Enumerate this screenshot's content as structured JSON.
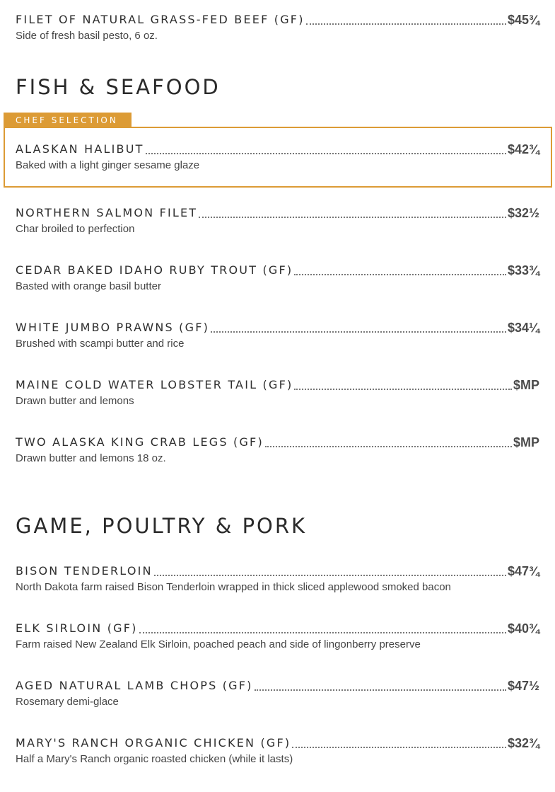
{
  "accent_color": "#dc9b35",
  "top_item": {
    "name": "FILET OF NATURAL GRASS-FED BEEF (GF)",
    "price": "$45¾",
    "desc": "Side of fresh basil pesto, 6 oz."
  },
  "fish": {
    "title": "FISH & SEAFOOD",
    "badge": "CHEF SELECTION",
    "items": [
      {
        "name": "ALASKAN HALIBUT",
        "price": "$42¾",
        "desc": "Baked with a light ginger sesame glaze"
      },
      {
        "name": "NORTHERN SALMON FILET",
        "price": "$32½",
        "desc": "Char broiled to perfection"
      },
      {
        "name": "CEDAR BAKED IDAHO RUBY TROUT (GF)",
        "price": "$33¾",
        "desc": "Basted with orange basil butter"
      },
      {
        "name": "WHITE JUMBO PRAWNS (GF)",
        "price": "$34¼",
        "desc": "Brushed with scampi butter and rice"
      },
      {
        "name": "MAINE COLD WATER LOBSTER TAIL (GF)",
        "price": "$MP",
        "desc": "Drawn butter and lemons"
      },
      {
        "name": "TWO ALASKA KING CRAB LEGS (GF)",
        "price": "$MP",
        "desc": "Drawn butter and lemons 18 oz."
      }
    ]
  },
  "game": {
    "title": "GAME, POULTRY & PORK",
    "items": [
      {
        "name": "BISON TENDERLOIN",
        "price": "$47¾",
        "desc": "North Dakota farm raised Bison Tenderloin wrapped in thick sliced applewood smoked bacon"
      },
      {
        "name": "ELK SIRLOIN (GF)",
        "price": "$40¾",
        "desc": "Farm raised New Zealand Elk Sirloin, poached peach and side of lingonberry preserve"
      },
      {
        "name": "AGED NATURAL LAMB CHOPS (GF)",
        "price": "$47½",
        "desc": "Rosemary demi-glace"
      },
      {
        "name": "MARY'S RANCH ORGANIC CHICKEN (GF)",
        "price": "$32¾",
        "desc": "Half a Mary's Ranch organic roasted chicken (while it lasts)"
      }
    ]
  }
}
